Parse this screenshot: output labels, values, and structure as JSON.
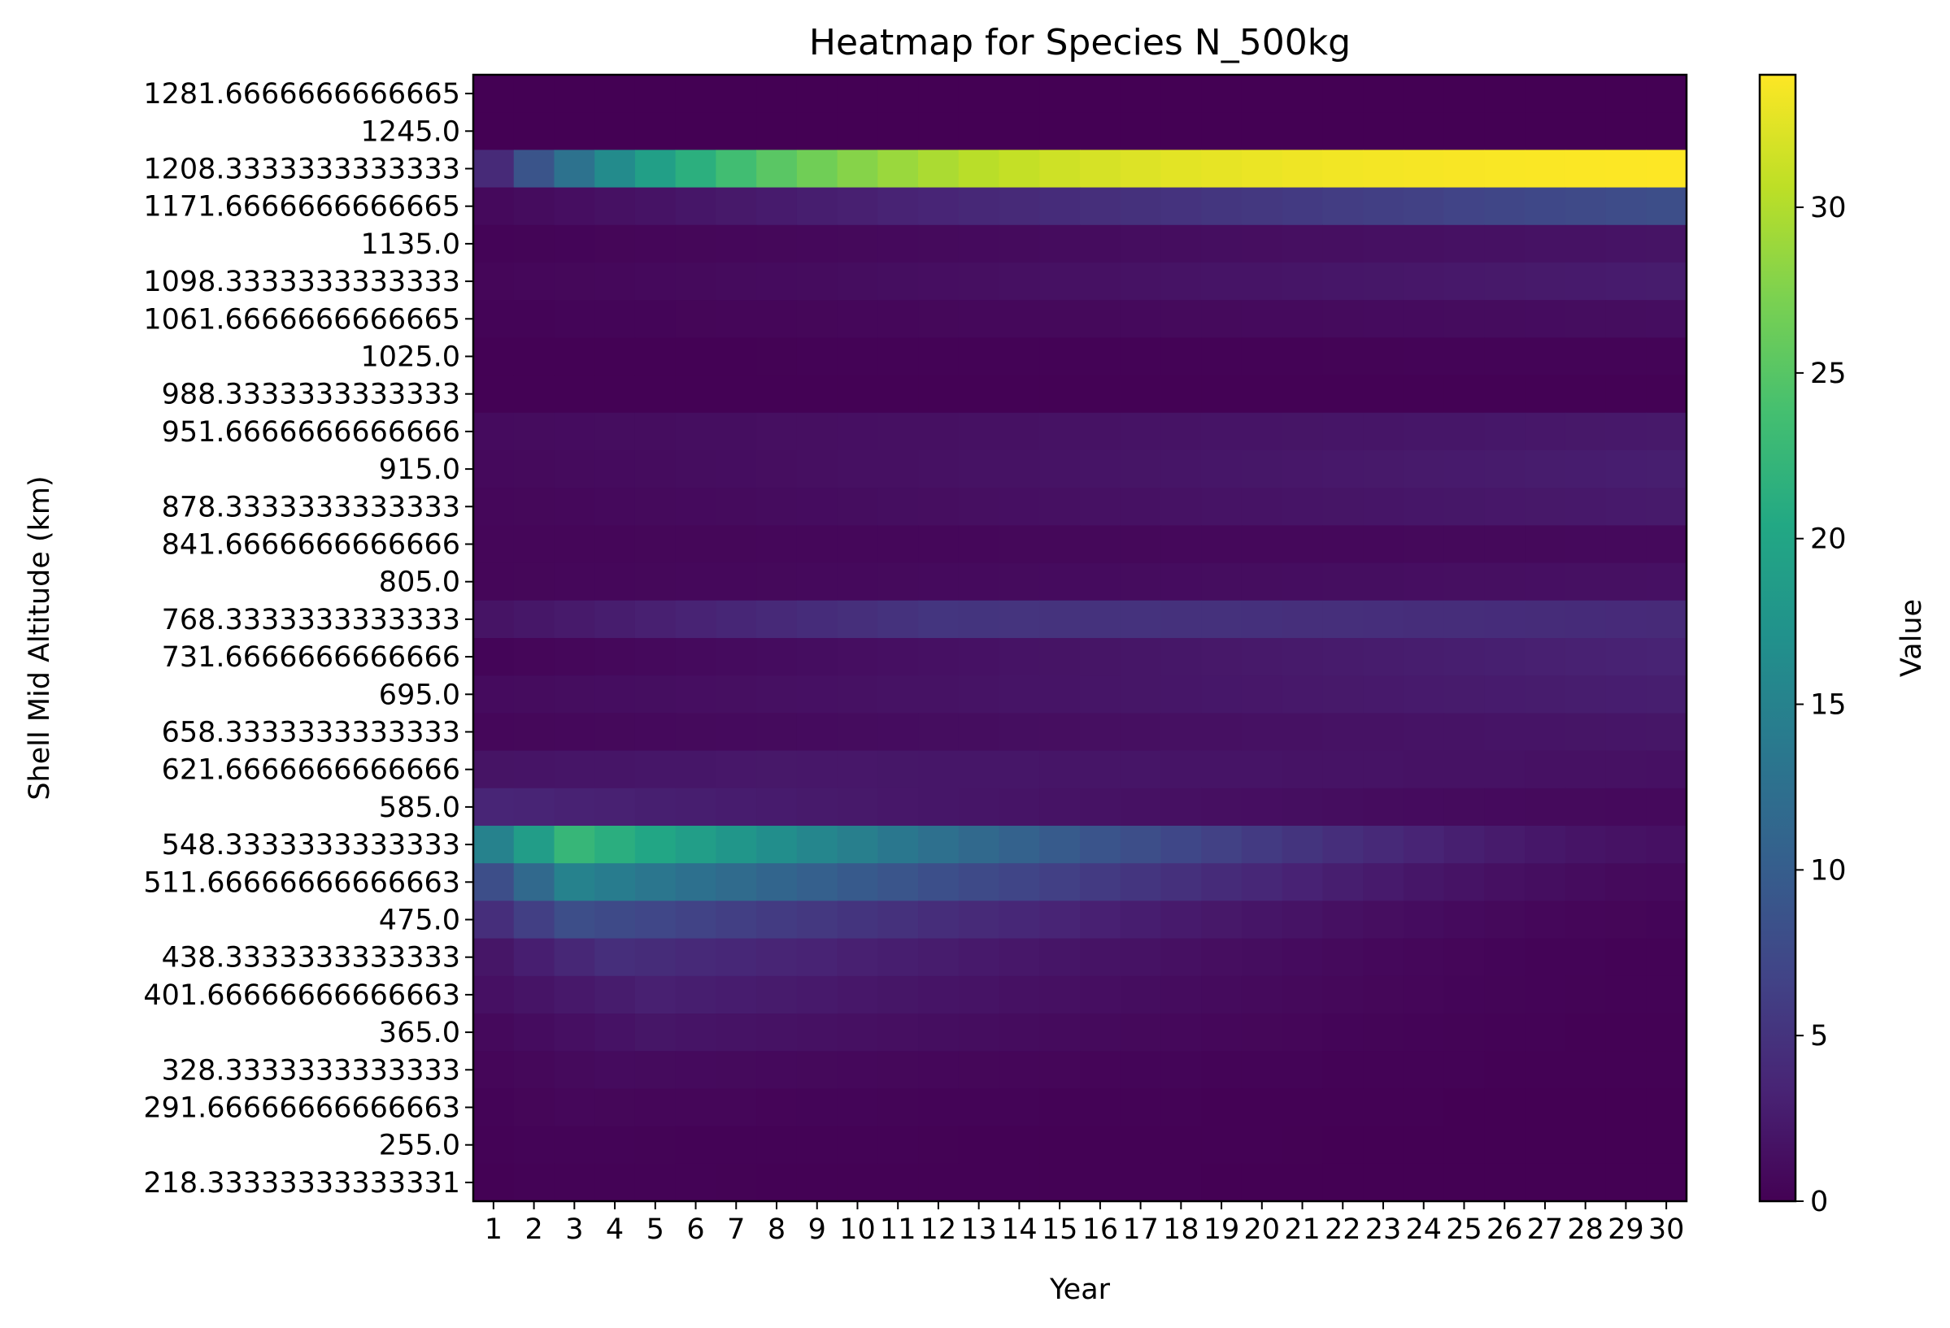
{
  "chart_data": {
    "type": "heatmap",
    "title": "Heatmap for Species N_500kg",
    "xlabel": "Year",
    "ylabel": "Shell Mid Altitude (km)",
    "colorbar_label": "Value",
    "colormap": "viridis",
    "vmin": 0,
    "vmax": 34,
    "colorbar_ticks": [
      0,
      5,
      10,
      15,
      20,
      25,
      30
    ],
    "x_categories": [
      "1",
      "2",
      "3",
      "4",
      "5",
      "6",
      "7",
      "8",
      "9",
      "10",
      "11",
      "12",
      "13",
      "14",
      "15",
      "16",
      "17",
      "18",
      "19",
      "20",
      "21",
      "22",
      "23",
      "24",
      "25",
      "26",
      "27",
      "28",
      "29",
      "30"
    ],
    "y_categories": [
      "1281.6666666666665",
      "1245.0",
      "1208.3333333333333",
      "1171.6666666666665",
      "1135.0",
      "1098.3333333333333",
      "1061.6666666666665",
      "1025.0",
      "988.3333333333333",
      "951.6666666666666",
      "915.0",
      "878.3333333333333",
      "841.6666666666666",
      "805.0",
      "768.3333333333333",
      "731.6666666666666",
      "695.0",
      "658.3333333333333",
      "621.6666666666666",
      "585.0",
      "548.3333333333333",
      "511.66666666666663",
      "475.0",
      "438.3333333333333",
      "401.66666666666663",
      "365.0",
      "328.3333333333333",
      "291.66666666666663",
      "255.0",
      "218.33333333333331"
    ],
    "row_profiles": [
      {
        "altitude": "1281.6666666666665",
        "year1": 0.0,
        "year30": 0.0,
        "peak": 0.0,
        "peak_year": 1,
        "shape": "linear"
      },
      {
        "altitude": "1245.0",
        "year1": 0.0,
        "year30": 0.0,
        "peak": 0.0,
        "peak_year": 1,
        "shape": "linear"
      },
      {
        "altitude": "1208.3333333333333",
        "year1": 4.0,
        "year30": 34.0,
        "peak": 34.0,
        "peak_year": 30,
        "shape": "sat"
      },
      {
        "altitude": "1171.6666666666665",
        "year1": 0.8,
        "year30": 8.0,
        "peak": 8.0,
        "peak_year": 30,
        "shape": "linear"
      },
      {
        "altitude": "1135.0",
        "year1": 0.3,
        "year30": 1.8,
        "peak": 1.8,
        "peak_year": 30,
        "shape": "linear"
      },
      {
        "altitude": "1098.3333333333333",
        "year1": 0.5,
        "year30": 2.6,
        "peak": 2.6,
        "peak_year": 30,
        "shape": "linear"
      },
      {
        "altitude": "1061.6666666666665",
        "year1": 0.3,
        "year30": 1.2,
        "peak": 1.2,
        "peak_year": 30,
        "shape": "linear"
      },
      {
        "altitude": "1025.0",
        "year1": 0.1,
        "year30": 0.3,
        "peak": 0.3,
        "peak_year": 30,
        "shape": "linear"
      },
      {
        "altitude": "988.3333333333333",
        "year1": 0.1,
        "year30": 0.1,
        "peak": 0.2,
        "peak_year": 15,
        "shape": "linear"
      },
      {
        "altitude": "951.6666666666666",
        "year1": 1.0,
        "year30": 2.3,
        "peak": 2.3,
        "peak_year": 30,
        "shape": "linear"
      },
      {
        "altitude": "915.0",
        "year1": 0.8,
        "year30": 2.8,
        "peak": 2.8,
        "peak_year": 30,
        "shape": "linear"
      },
      {
        "altitude": "878.3333333333333",
        "year1": 0.6,
        "year30": 2.4,
        "peak": 2.4,
        "peak_year": 30,
        "shape": "linear"
      },
      {
        "altitude": "841.6666666666666",
        "year1": 0.5,
        "year30": 0.8,
        "peak": 0.8,
        "peak_year": 30,
        "shape": "linear"
      },
      {
        "altitude": "805.0",
        "year1": 0.5,
        "year30": 1.5,
        "peak": 1.5,
        "peak_year": 30,
        "shape": "linear"
      },
      {
        "altitude": "768.3333333333333",
        "year1": 1.8,
        "year30": 4.0,
        "peak": 5.2,
        "peak_year": 12,
        "shape": "hump"
      },
      {
        "altitude": "731.6666666666666",
        "year1": 0.4,
        "year30": 3.3,
        "peak": 3.3,
        "peak_year": 30,
        "shape": "linear"
      },
      {
        "altitude": "695.0",
        "year1": 1.0,
        "year30": 2.8,
        "peak": 2.8,
        "peak_year": 30,
        "shape": "linear"
      },
      {
        "altitude": "658.3333333333333",
        "year1": 0.6,
        "year30": 2.0,
        "peak": 2.0,
        "peak_year": 30,
        "shape": "linear"
      },
      {
        "altitude": "621.6666666666666",
        "year1": 1.8,
        "year30": 1.5,
        "peak": 2.2,
        "peak_year": 8,
        "shape": "hump"
      },
      {
        "altitude": "585.0",
        "year1": 3.5,
        "year30": 0.8,
        "peak": 3.5,
        "peak_year": 1,
        "shape": "decay"
      },
      {
        "altitude": "548.3333333333333",
        "year1": 15.0,
        "year30": 1.5,
        "peak": 22.5,
        "peak_year": 3,
        "shape": "decay"
      },
      {
        "altitude": "511.66666666666663",
        "year1": 8.0,
        "year30": 0.8,
        "peak": 15.0,
        "peak_year": 3,
        "shape": "decay"
      },
      {
        "altitude": "475.0",
        "year1": 4.5,
        "year30": 0.4,
        "peak": 8.0,
        "peak_year": 3,
        "shape": "decay"
      },
      {
        "altitude": "438.3333333333333",
        "year1": 2.0,
        "year30": 0.2,
        "peak": 4.5,
        "peak_year": 4,
        "shape": "decay"
      },
      {
        "altitude": "401.66666666666663",
        "year1": 1.5,
        "year30": 0.2,
        "peak": 3.0,
        "peak_year": 5,
        "shape": "decay"
      },
      {
        "altitude": "365.0",
        "year1": 0.8,
        "year30": 0.1,
        "peak": 2.0,
        "peak_year": 5,
        "shape": "decay"
      },
      {
        "altitude": "328.3333333333333",
        "year1": 0.5,
        "year30": 0.1,
        "peak": 1.0,
        "peak_year": 4,
        "shape": "decay"
      },
      {
        "altitude": "291.66666666666663",
        "year1": 0.3,
        "year30": 0.0,
        "peak": 0.6,
        "peak_year": 3,
        "shape": "decay"
      },
      {
        "altitude": "255.0",
        "year1": 0.2,
        "year30": 0.0,
        "peak": 0.3,
        "peak_year": 2,
        "shape": "decay"
      },
      {
        "altitude": "218.33333333333331",
        "year1": 0.1,
        "year30": 0.0,
        "peak": 0.2,
        "peak_year": 2,
        "shape": "decay"
      }
    ]
  }
}
